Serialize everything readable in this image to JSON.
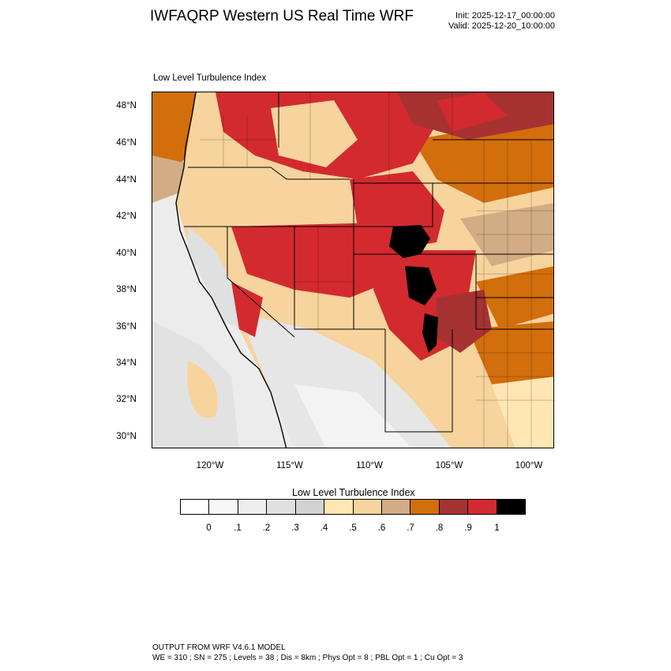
{
  "header": {
    "title": "IWFAQRP Western US Real Time WRF",
    "init": "Init: 2025-12-17_00:00:00",
    "valid": "Valid: 2025-12-20_10:00:00"
  },
  "plot": {
    "field_label": "Low Level Turbulence Index",
    "lat_ticks": [
      "48°N",
      "46°N",
      "44°N",
      "42°N",
      "40°N",
      "38°N",
      "36°N",
      "34°N",
      "32°N",
      "30°N"
    ],
    "lon_ticks": [
      "120°W",
      "115°W",
      "110°W",
      "105°W",
      "100°W"
    ]
  },
  "colorbar": {
    "title": "Low Level Turbulence Index",
    "labels": [
      "0",
      ".1",
      ".2",
      ".3",
      ".4",
      ".5",
      ".6",
      ".7",
      ".8",
      ".9",
      "1"
    ],
    "colors": [
      "#ffffff",
      "#f7f7f7",
      "#eeeeee",
      "#e0e0e0",
      "#d2d2d2",
      "#ffe6b3",
      "#f7d39d",
      "#d2ac84",
      "#d26e0c",
      "#a63232",
      "#d22a2f",
      "#000000"
    ]
  },
  "footer": {
    "line1": "OUTPUT FROM WRF V4.6.1 MODEL",
    "line2": "WE = 310 ; SN = 275 ; Levels = 38 ; Dis = 8km ; Phys Opt = 8 ; PBL Opt = 1 ; Cu Opt = 3"
  }
}
